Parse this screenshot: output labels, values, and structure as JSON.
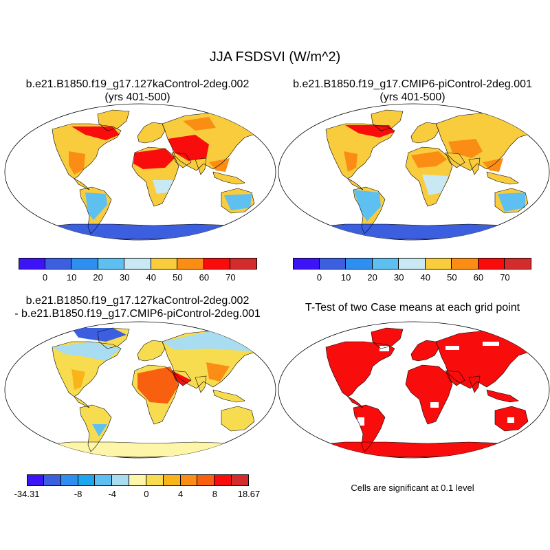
{
  "title": "JJA FSDSVI (W/m^2)",
  "panels": [
    {
      "id": "case1",
      "title_line1": "b.e21.B1850.f19_g17.127kaControl-2deg.002",
      "title_line2": "(yrs 401-500)"
    },
    {
      "id": "case2",
      "title_line1": "b.e21.B1850.f19_g17.CMIP6-piControl-2deg.001",
      "title_line2": "(yrs 401-500)"
    },
    {
      "id": "diff",
      "title_line1": "b.e21.B1850.f19_g17.127kaControl-2deg.002",
      "title_line2": "- b.e21.B1850.f19_g17.CMIP6-piControl-2deg.001"
    },
    {
      "id": "ttest",
      "title_line1": "T-Test of two Case means at each grid point",
      "title_line2": ""
    }
  ],
  "colorbar_main": {
    "colors": [
      "#3d14f5",
      "#3c5fe0",
      "#2d8ff0",
      "#5ec0f0",
      "#c8e8f4",
      "#f8cc3c",
      "#fb8c14",
      "#f80c0c",
      "#d42c2c"
    ],
    "labels": [
      "0",
      "10",
      "20",
      "30",
      "40",
      "50",
      "60",
      "70"
    ]
  },
  "colorbar_diff": {
    "colors": [
      "#3d14f5",
      "#3c5fe0",
      "#2d8ff0",
      "#1ca6f0",
      "#5ec0f0",
      "#a8dcf0",
      "#fdf5a8",
      "#f8dc50",
      "#f8b418",
      "#fb8c14",
      "#f86010",
      "#f80c0c",
      "#d42c2c"
    ],
    "labels": [
      "-34.31",
      "-8",
      "-4",
      "0",
      "4",
      "8",
      "18.67"
    ]
  },
  "significance_note": "Cells are significant at 0.1 level"
}
